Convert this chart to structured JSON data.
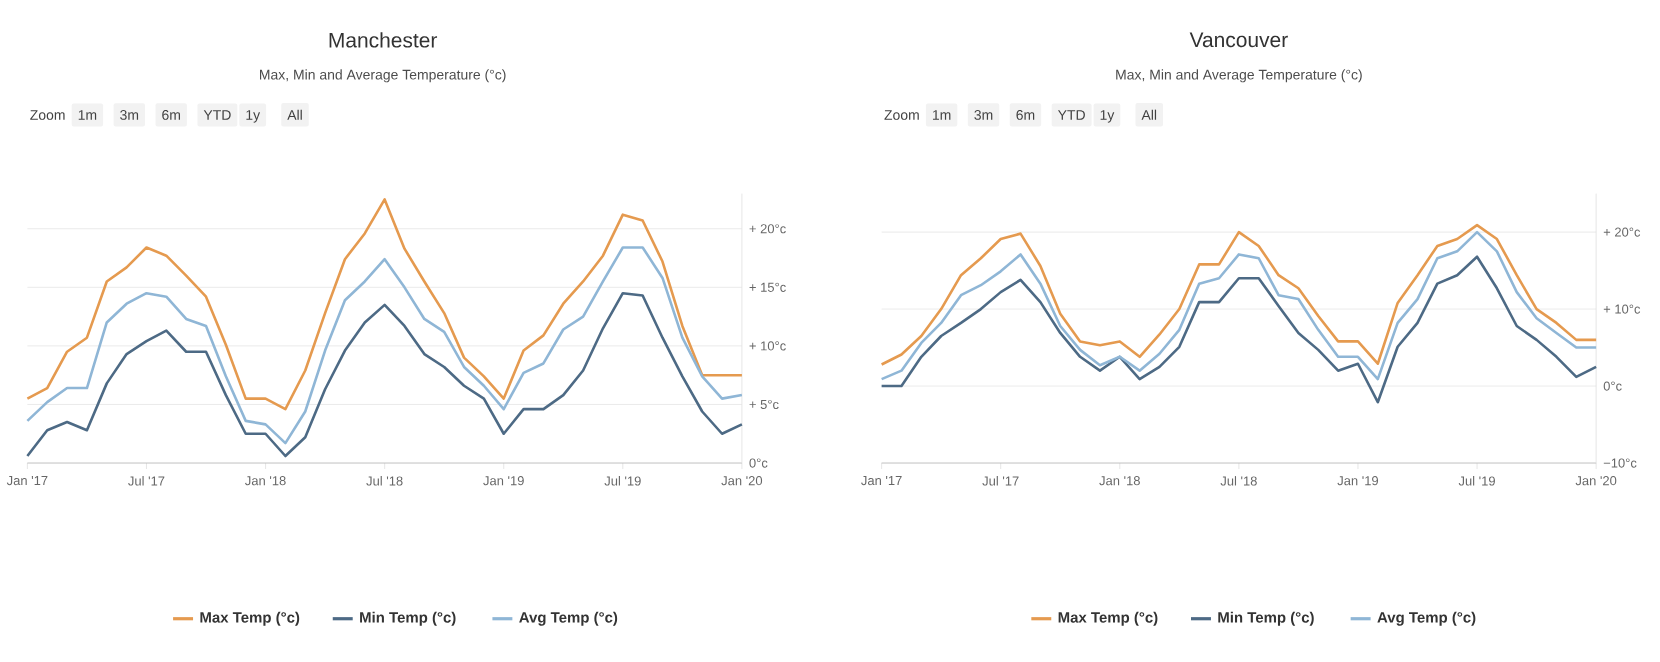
{
  "chart_data": [
    {
      "type": "line",
      "title": "Manchester",
      "subtitle": "Max, Min and Average Temperature (°c)",
      "annotations": [
        "Zoom",
        "1m",
        "3m",
        "6m",
        "YTD",
        "1y",
        "All"
      ],
      "x": [
        "2017-01",
        "2017-02",
        "2017-03",
        "2017-04",
        "2017-05",
        "2017-06",
        "2017-07",
        "2017-08",
        "2017-09",
        "2017-10",
        "2017-11",
        "2017-12",
        "2018-01",
        "2018-02",
        "2018-03",
        "2018-04",
        "2018-05",
        "2018-06",
        "2018-07",
        "2018-08",
        "2018-09",
        "2018-10",
        "2018-11",
        "2018-12",
        "2019-01",
        "2019-02",
        "2019-03",
        "2019-04",
        "2019-05",
        "2019-06",
        "2019-07",
        "2019-08",
        "2019-09",
        "2019-10",
        "2019-11",
        "2019-12",
        "2020-01"
      ],
      "series": [
        {
          "name": "Max Temp (°c)",
          "color": "#e59a4f",
          "values": [
            5.5,
            6.4,
            9.5,
            10.7,
            15.5,
            16.7,
            18.4,
            17.7,
            16,
            14.2,
            10.1,
            5.5,
            5.5,
            4.6,
            7.9,
            12.8,
            17.4,
            19.6,
            22.5,
            18.3,
            15.5,
            12.8,
            9,
            7.4,
            5.5,
            9.6,
            10.9,
            13.6,
            15.5,
            17.7,
            21.2,
            20.7,
            17.2,
            11.7,
            7.5,
            7.5,
            7.5
          ]
        },
        {
          "name": "Min Temp (°c)",
          "color": "#4d6a85",
          "values": [
            0.6,
            2.8,
            3.5,
            2.8,
            6.8,
            9.3,
            10.4,
            11.3,
            9.5,
            9.5,
            5.8,
            2.5,
            2.5,
            0.6,
            2.2,
            6.3,
            9.6,
            12,
            13.5,
            11.7,
            9.3,
            8.2,
            6.6,
            5.5,
            2.5,
            4.6,
            4.6,
            5.8,
            7.9,
            11.5,
            14.5,
            14.3,
            10.7,
            7.4,
            4.4,
            2.5,
            3.3
          ]
        },
        {
          "name": "Avg Temp (°c)",
          "color": "#8fb6d6",
          "values": [
            3.6,
            5.2,
            6.4,
            6.4,
            12,
            13.6,
            14.5,
            14.2,
            12.3,
            11.7,
            7.4,
            3.6,
            3.3,
            1.7,
            4.4,
            9.6,
            13.9,
            15.5,
            17.4,
            15,
            12.3,
            11.2,
            8.2,
            6.6,
            4.6,
            7.7,
            8.5,
            11.4,
            12.5,
            15.5,
            18.4,
            18.4,
            15.8,
            10.7,
            7.4,
            5.5,
            5.8
          ]
        }
      ],
      "xlim": [
        "2017-01",
        "2020-01"
      ],
      "xticks": [
        {
          "value": "2017-01",
          "label": "Jan '17"
        },
        {
          "value": "2017-07",
          "label": "Jul '17"
        },
        {
          "value": "2018-01",
          "label": "Jan '18"
        },
        {
          "value": "2018-07",
          "label": "Jul '18"
        },
        {
          "value": "2019-01",
          "label": "Jan '19"
        },
        {
          "value": "2019-07",
          "label": "Jul '19"
        },
        {
          "value": "2020-01",
          "label": "Jan '20"
        }
      ],
      "ylim": [
        0,
        23
      ],
      "yticks": [
        {
          "value": 0,
          "label": "0°c"
        },
        {
          "value": 5,
          "label": "+ 5°c"
        },
        {
          "value": 10,
          "label": "+ 10°c"
        },
        {
          "value": 15,
          "label": "+ 15°c"
        },
        {
          "value": 20,
          "label": "+ 20°c"
        }
      ],
      "grid": "y",
      "legend": "bottom",
      "marker": "none",
      "line_style": "solid"
    },
    {
      "type": "line",
      "title": "Vancouver",
      "subtitle": "Max, Min and Average Temperature (°c)",
      "annotations": [
        "Zoom",
        "1m",
        "3m",
        "6m",
        "YTD",
        "1y",
        "All"
      ],
      "x": [
        "2017-01",
        "2017-02",
        "2017-03",
        "2017-04",
        "2017-05",
        "2017-06",
        "2017-07",
        "2017-08",
        "2017-09",
        "2017-10",
        "2017-11",
        "2017-12",
        "2018-01",
        "2018-02",
        "2018-03",
        "2018-04",
        "2018-05",
        "2018-06",
        "2018-07",
        "2018-08",
        "2018-09",
        "2018-10",
        "2018-11",
        "2018-12",
        "2019-01",
        "2019-02",
        "2019-03",
        "2019-04",
        "2019-05",
        "2019-06",
        "2019-07",
        "2019-08",
        "2019-09",
        "2019-10",
        "2019-11",
        "2019-12",
        "2020-01"
      ],
      "series": [
        {
          "name": "Max Temp (°c)",
          "color": "#e59a4f",
          "values": [
            2.8,
            4.1,
            6.5,
            10,
            14.4,
            16.6,
            19.1,
            19.8,
            15.6,
            9.4,
            5.8,
            5.3,
            5.8,
            3.8,
            6.7,
            10,
            15.8,
            15.8,
            20,
            18.2,
            14.4,
            12.7,
            9.1,
            5.8,
            5.8,
            2.9,
            10.8,
            14.4,
            18.2,
            19.1,
            20.9,
            19.1,
            14.4,
            10,
            8.2,
            6,
            6
          ]
        },
        {
          "name": "Min Temp (°c)",
          "color": "#4d6a85",
          "values": [
            0,
            0,
            3.8,
            6.5,
            8.2,
            10,
            12.2,
            13.8,
            10.9,
            6.9,
            3.8,
            2,
            3.8,
            0.9,
            2.5,
            5.1,
            10.9,
            10.9,
            14,
            14,
            10.4,
            6.9,
            4.7,
            2,
            2.9,
            -2.1,
            5.1,
            8.2,
            13.3,
            14.4,
            16.8,
            12.7,
            7.8,
            6,
            3.8,
            1.2,
            2.5
          ]
        },
        {
          "name": "Avg Temp (°c)",
          "color": "#8fb6d6",
          "values": [
            0.9,
            2,
            5.6,
            8.2,
            11.8,
            13.1,
            14.9,
            17.1,
            13.3,
            7.8,
            4.7,
            2.7,
            3.8,
            2,
            4.2,
            7.3,
            13.3,
            14,
            17.1,
            16.6,
            11.8,
            11.3,
            7.3,
            3.8,
            3.8,
            0.9,
            8.2,
            11.3,
            16.6,
            17.5,
            20,
            17.5,
            12.2,
            8.8,
            6.9,
            5,
            5
          ]
        }
      ],
      "xlim": [
        "2017-01",
        "2020-01"
      ],
      "xticks": [
        {
          "value": "2017-01",
          "label": "Jan '17"
        },
        {
          "value": "2017-07",
          "label": "Jul '17"
        },
        {
          "value": "2018-01",
          "label": "Jan '18"
        },
        {
          "value": "2018-07",
          "label": "Jul '18"
        },
        {
          "value": "2019-01",
          "label": "Jan '19"
        },
        {
          "value": "2019-07",
          "label": "Jul '19"
        },
        {
          "value": "2020-01",
          "label": "Jan '20"
        }
      ],
      "ylim": [
        -10,
        25
      ],
      "yticks": [
        {
          "value": -10,
          "label": "−10°c"
        },
        {
          "value": 0,
          "label": "0°c"
        },
        {
          "value": 10,
          "label": "+ 10°c"
        },
        {
          "value": 20,
          "label": "+ 20°c"
        }
      ],
      "grid": "y",
      "legend": "bottom",
      "marker": "none",
      "line_style": "solid"
    }
  ]
}
